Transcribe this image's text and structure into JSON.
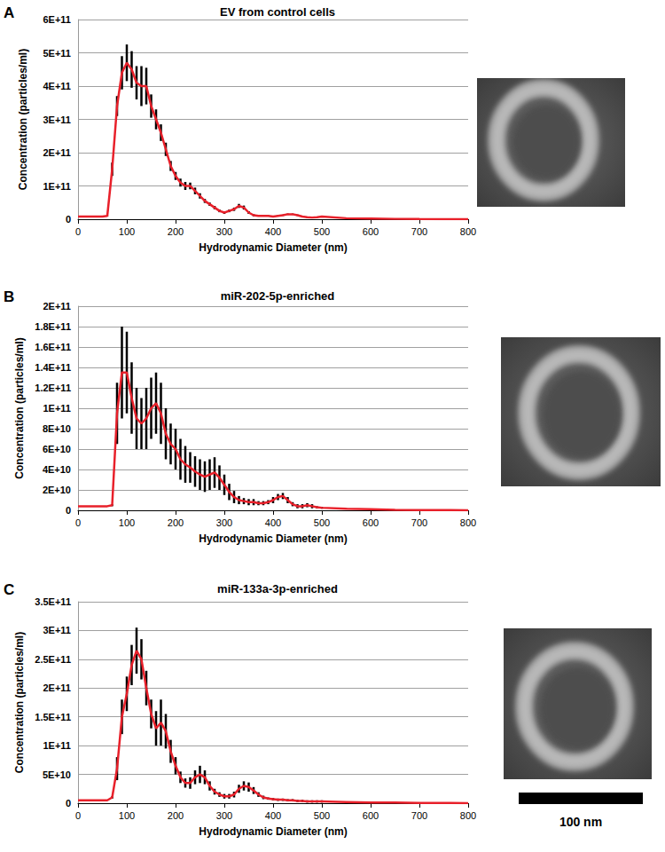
{
  "chart_data": [
    {
      "type": "line",
      "panel": "A",
      "title": "EV from control cells",
      "x_label": "Hydrodynamic Diameter (nm)",
      "y_label": "Concentration (particles/ml)",
      "xlim": [
        0,
        800
      ],
      "xticks": [
        0,
        100,
        200,
        300,
        400,
        500,
        600,
        700,
        800
      ],
      "ylim": [
        0,
        600000000000.0
      ],
      "yticks": [
        0,
        {
          "value": 100000000000.0,
          "label": "1E+11"
        },
        {
          "value": 200000000000.0,
          "label": "2E+11"
        },
        {
          "value": 300000000000.0,
          "label": "3E+11"
        },
        {
          "value": 400000000000.0,
          "label": "4E+11"
        },
        {
          "value": 500000000000.0,
          "label": "5E+11"
        },
        {
          "value": 600000000000.0,
          "label": "6E+11"
        }
      ],
      "grid": true,
      "x": [
        0,
        10,
        20,
        30,
        40,
        50,
        60,
        70,
        80,
        90,
        100,
        110,
        120,
        130,
        140,
        150,
        160,
        170,
        180,
        190,
        200,
        210,
        220,
        230,
        240,
        250,
        260,
        270,
        280,
        290,
        300,
        310,
        320,
        330,
        340,
        350,
        360,
        370,
        380,
        390,
        400,
        410,
        420,
        430,
        440,
        450,
        460,
        470,
        480,
        490,
        500,
        550,
        600,
        650,
        700,
        750,
        800
      ],
      "series": [
        {
          "color": "#e8202a",
          "values": [
            8000000000.0,
            8000000000.0,
            8000000000.0,
            8000000000.0,
            8000000000.0,
            8000000000.0,
            10000000000.0,
            150000000000.0,
            340000000000.0,
            440000000000.0,
            470000000000.0,
            450000000000.0,
            410000000000.0,
            400000000000.0,
            400000000000.0,
            340000000000.0,
            300000000000.0,
            260000000000.0,
            210000000000.0,
            160000000000.0,
            130000000000.0,
            110000000000.0,
            100000000000.0,
            100000000000.0,
            85000000000.0,
            70000000000.0,
            55000000000.0,
            45000000000.0,
            35000000000.0,
            25000000000.0,
            20000000000.0,
            25000000000.0,
            30000000000.0,
            40000000000.0,
            35000000000.0,
            20000000000.0,
            12000000000.0,
            10000000000.0,
            10000000000.0,
            10000000000.0,
            8000000000.0,
            10000000000.0,
            12000000000.0,
            15000000000.0,
            15000000000.0,
            12000000000.0,
            8000000000.0,
            6000000000.0,
            5000000000.0,
            6000000000.0,
            8000000000.0,
            3000000000.0,
            2000000000.0,
            1000000000.0,
            500000000.0,
            300000000.0,
            0
          ],
          "error": [
            0,
            0,
            0,
            0,
            0,
            0,
            1000000000.0,
            20000000000.0,
            30000000000.0,
            50000000000.0,
            55000000000.0,
            55000000000.0,
            50000000000.0,
            60000000000.0,
            55000000000.0,
            35000000000.0,
            30000000000.0,
            25000000000.0,
            20000000000.0,
            15000000000.0,
            12000000000.0,
            12000000000.0,
            12000000000.0,
            10000000000.0,
            10000000000.0,
            8000000000.0,
            6000000000.0,
            5000000000.0,
            5000000000.0,
            4000000000.0,
            4000000000.0,
            4000000000.0,
            5000000000.0,
            6000000000.0,
            6000000000.0,
            4000000000.0,
            3000000000.0,
            2000000000.0,
            2000000000.0,
            2000000000.0,
            2000000000.0,
            2000000000.0,
            2000000000.0,
            2000000000.0,
            2000000000.0,
            2000000000.0,
            2000000000.0,
            2000000000.0,
            2000000000.0,
            2000000000.0,
            2000000000.0,
            1000000000.0,
            1000000000.0,
            500000000.0,
            500000000.0,
            300000000.0,
            0
          ]
        }
      ]
    },
    {
      "type": "line",
      "panel": "B",
      "title": "miR-202-5p-enriched",
      "x_label": "Hydrodynamic Diameter (nm)",
      "y_label": "Concentration (particles/ml)",
      "xlim": [
        0,
        800
      ],
      "xticks": [
        0,
        100,
        200,
        300,
        400,
        500,
        600,
        700,
        800
      ],
      "ylim": [
        0,
        200000000000.0
      ],
      "yticks": [
        0,
        {
          "value": 20000000000.0,
          "label": "2E+10"
        },
        {
          "value": 40000000000.0,
          "label": "4E+10"
        },
        {
          "value": 60000000000.0,
          "label": "6E+10"
        },
        {
          "value": 80000000000.0,
          "label": "8E+10"
        },
        {
          "value": 100000000000.0,
          "label": "1E+11"
        },
        {
          "value": 120000000000.0,
          "label": "1.2E+11"
        },
        {
          "value": 140000000000.0,
          "label": "1.4E+11"
        },
        {
          "value": 160000000000.0,
          "label": "1.6E+11"
        },
        {
          "value": 180000000000.0,
          "label": "1.8E+11"
        },
        {
          "value": 200000000000.0,
          "label": "2E+11"
        }
      ],
      "grid": true,
      "x": [
        0,
        10,
        20,
        30,
        40,
        50,
        60,
        70,
        80,
        90,
        100,
        110,
        120,
        130,
        140,
        150,
        160,
        170,
        180,
        190,
        200,
        210,
        220,
        230,
        240,
        250,
        260,
        270,
        280,
        290,
        300,
        310,
        320,
        330,
        340,
        350,
        360,
        370,
        380,
        390,
        400,
        410,
        420,
        430,
        440,
        450,
        460,
        470,
        480,
        490,
        500,
        550,
        600,
        650,
        700,
        750,
        800
      ],
      "series": [
        {
          "color": "#e8202a",
          "values": [
            4000000000.0,
            4000000000.0,
            4000000000.0,
            4000000000.0,
            4000000000.0,
            4000000000.0,
            4000000000.0,
            5000000000.0,
            95000000000.0,
            135000000000.0,
            135000000000.0,
            110000000000.0,
            90000000000.0,
            85000000000.0,
            90000000000.0,
            100000000000.0,
            105000000000.0,
            95000000000.0,
            75000000000.0,
            65000000000.0,
            60000000000.0,
            50000000000.0,
            45000000000.0,
            42000000000.0,
            38000000000.0,
            35000000000.0,
            33000000000.0,
            35000000000.0,
            37000000000.0,
            32000000000.0,
            25000000000.0,
            18000000000.0,
            13000000000.0,
            10000000000.0,
            9000000000.0,
            8000000000.0,
            8000000000.0,
            7000000000.0,
            7000000000.0,
            8000000000.0,
            10000000000.0,
            13000000000.0,
            14000000000.0,
            10000000000.0,
            6000000000.0,
            4000000000.0,
            4000000000.0,
            5000000000.0,
            4000000000.0,
            3000000000.0,
            2500000000.0,
            1500000000.0,
            1000000000.0,
            500000000.0,
            300000000.0,
            200000000.0,
            0
          ],
          "error": [
            0,
            0,
            0,
            0,
            0,
            0,
            0,
            1000000000.0,
            30000000000.0,
            45000000000.0,
            40000000000.0,
            35000000000.0,
            30000000000.0,
            25000000000.0,
            30000000000.0,
            30000000000.0,
            30000000000.0,
            30000000000.0,
            25000000000.0,
            20000000000.0,
            20000000000.0,
            20000000000.0,
            18000000000.0,
            15000000000.0,
            15000000000.0,
            15000000000.0,
            15000000000.0,
            15000000000.0,
            15000000000.0,
            12000000000.0,
            10000000000.0,
            8000000000.0,
            6000000000.0,
            4000000000.0,
            3000000000.0,
            3000000000.0,
            3000000000.0,
            2000000000.0,
            2000000000.0,
            2000000000.0,
            3000000000.0,
            3000000000.0,
            3000000000.0,
            3000000000.0,
            2000000000.0,
            2000000000.0,
            2000000000.0,
            2000000000.0,
            2000000000.0,
            1000000000.0,
            1000000000.0,
            500000000.0,
            500000000.0,
            300000000.0,
            200000000.0,
            100000000.0,
            0
          ]
        }
      ]
    },
    {
      "type": "line",
      "panel": "C",
      "title": "miR-133a-3p-enriched",
      "x_label": "Hydrodynamic Diameter (nm)",
      "y_label": "Concentration (particles/ml)",
      "xlim": [
        0,
        800
      ],
      "xticks": [
        0,
        100,
        200,
        300,
        400,
        500,
        600,
        700,
        800
      ],
      "ylim": [
        0,
        350000000000.0
      ],
      "yticks": [
        0,
        {
          "value": 50000000000.0,
          "label": "5E+10"
        },
        {
          "value": 100000000000.0,
          "label": "1E+11"
        },
        {
          "value": 150000000000.0,
          "label": "1.5E+11"
        },
        {
          "value": 200000000000.0,
          "label": "2E+11"
        },
        {
          "value": 250000000000.0,
          "label": "2.5E+11"
        },
        {
          "value": 300000000000.0,
          "label": "3E+11"
        },
        {
          "value": 350000000000.0,
          "label": "3.5E+11"
        }
      ],
      "grid": true,
      "x": [
        0,
        10,
        20,
        30,
        40,
        50,
        60,
        70,
        80,
        90,
        100,
        110,
        120,
        130,
        140,
        150,
        160,
        170,
        180,
        190,
        200,
        210,
        220,
        230,
        240,
        250,
        260,
        270,
        280,
        290,
        300,
        310,
        320,
        330,
        340,
        350,
        360,
        370,
        380,
        390,
        400,
        410,
        420,
        430,
        440,
        450,
        460,
        470,
        480,
        490,
        500,
        550,
        600,
        650,
        700,
        750,
        800
      ],
      "series": [
        {
          "color": "#e8202a",
          "values": [
            5000000000.0,
            5000000000.0,
            5000000000.0,
            5000000000.0,
            5000000000.0,
            5000000000.0,
            5000000000.0,
            10000000000.0,
            60000000000.0,
            150000000000.0,
            190000000000.0,
            240000000000.0,
            265000000000.0,
            250000000000.0,
            200000000000.0,
            155000000000.0,
            130000000000.0,
            140000000000.0,
            125000000000.0,
            90000000000.0,
            65000000000.0,
            45000000000.0,
            35000000000.0,
            35000000000.0,
            45000000000.0,
            50000000000.0,
            45000000000.0,
            30000000000.0,
            20000000000.0,
            15000000000.0,
            12000000000.0,
            12000000000.0,
            15000000000.0,
            25000000000.0,
            30000000000.0,
            28000000000.0,
            22000000000.0,
            15000000000.0,
            10000000000.0,
            8000000000.0,
            7000000000.0,
            6000000000.0,
            6000000000.0,
            5000000000.0,
            5000000000.0,
            4000000000.0,
            4000000000.0,
            3000000000.0,
            3000000000.0,
            3000000000.0,
            3000000000.0,
            2000000000.0,
            1000000000.0,
            1000000000.0,
            500000000.0,
            300000000.0,
            0
          ],
          "error": [
            0,
            0,
            0,
            0,
            0,
            0,
            0,
            2000000000.0,
            20000000000.0,
            30000000000.0,
            30000000000.0,
            35000000000.0,
            40000000000.0,
            35000000000.0,
            30000000000.0,
            25000000000.0,
            30000000000.0,
            40000000000.0,
            30000000000.0,
            20000000000.0,
            15000000000.0,
            10000000000.0,
            8000000000.0,
            10000000000.0,
            12000000000.0,
            15000000000.0,
            12000000000.0,
            8000000000.0,
            5000000000.0,
            4000000000.0,
            4000000000.0,
            4000000000.0,
            5000000000.0,
            7000000000.0,
            8000000000.0,
            8000000000.0,
            6000000000.0,
            4000000000.0,
            3000000000.0,
            2000000000.0,
            2000000000.0,
            2000000000.0,
            2000000000.0,
            2000000000.0,
            2000000000.0,
            2000000000.0,
            2000000000.0,
            2000000000.0,
            2000000000.0,
            2000000000.0,
            2000000000.0,
            1000000000.0,
            500000000.0,
            500000000.0,
            300000000.0,
            200000000.0,
            0
          ]
        }
      ]
    }
  ],
  "scale_bar": "100 nm"
}
